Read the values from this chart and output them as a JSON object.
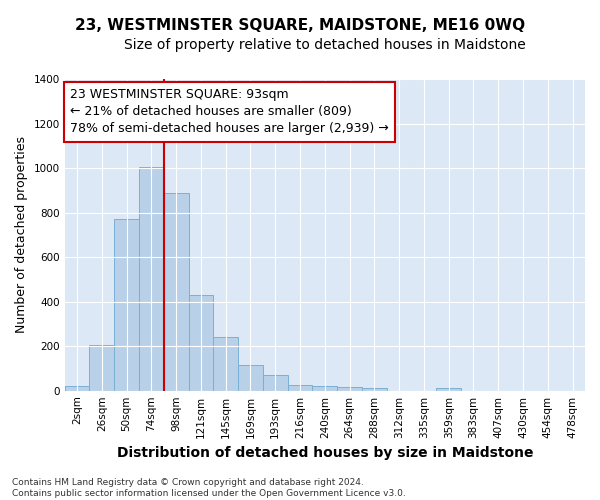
{
  "title": "23, WESTMINSTER SQUARE, MAIDSTONE, ME16 0WQ",
  "subtitle": "Size of property relative to detached houses in Maidstone",
  "xlabel": "Distribution of detached houses by size in Maidstone",
  "ylabel": "Number of detached properties",
  "categories": [
    "2sqm",
    "26sqm",
    "50sqm",
    "74sqm",
    "98sqm",
    "121sqm",
    "145sqm",
    "169sqm",
    "193sqm",
    "216sqm",
    "240sqm",
    "264sqm",
    "288sqm",
    "312sqm",
    "335sqm",
    "359sqm",
    "383sqm",
    "407sqm",
    "430sqm",
    "454sqm",
    "478sqm"
  ],
  "values": [
    22,
    205,
    770,
    1005,
    890,
    430,
    240,
    115,
    70,
    25,
    20,
    15,
    10,
    0,
    0,
    10,
    0,
    0,
    0,
    0,
    0
  ],
  "bar_color": "#b8d0e8",
  "bar_edge_color": "#7aafd4",
  "background_color": "#dce8f5",
  "grid_color": "#ffffff",
  "vline_x_idx": 3.5,
  "vline_color": "#cc0000",
  "annotation_line1": "23 WESTMINSTER SQUARE: 93sqm",
  "annotation_line2": "← 21% of detached houses are smaller (809)",
  "annotation_line3": "78% of semi-detached houses are larger (2,939) →",
  "annotation_box_facecolor": "#ffffff",
  "annotation_box_edgecolor": "#cc0000",
  "ylim": [
    0,
    1400
  ],
  "yticks": [
    0,
    200,
    400,
    600,
    800,
    1000,
    1200,
    1400
  ],
  "footer": "Contains HM Land Registry data © Crown copyright and database right 2024.\nContains public sector information licensed under the Open Government Licence v3.0.",
  "title_fontsize": 11,
  "subtitle_fontsize": 10,
  "xlabel_fontsize": 10,
  "ylabel_fontsize": 9,
  "tick_fontsize": 7.5,
  "annotation_fontsize": 9,
  "footer_fontsize": 6.5
}
